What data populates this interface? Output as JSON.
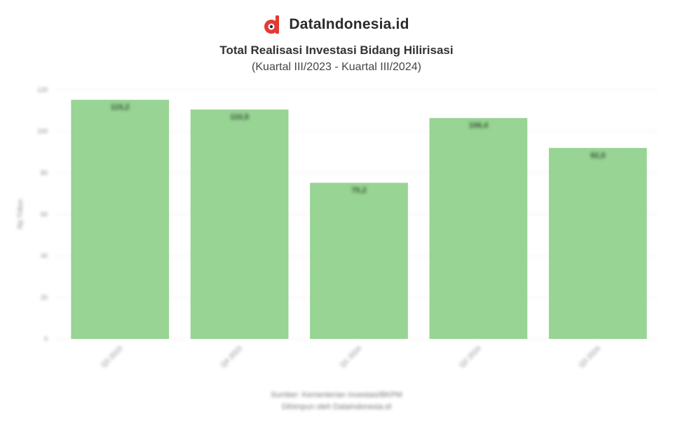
{
  "brand": {
    "name": "DataIndonesia.id",
    "logo_icon": "dataindonesia-logo-icon",
    "logo_color": "#e53935"
  },
  "chart_data": {
    "type": "bar",
    "title": "Total Realisasi Investasi Bidang Hilirisasi",
    "subtitle": "(Kuartal III/2023 - Kuartal III/2024)",
    "categories": [
      "Q3 2023",
      "Q4 2023",
      "Q1 2024",
      "Q2 2024",
      "Q3 2024"
    ],
    "values": [
      115.2,
      110.5,
      75.2,
      106.4,
      92.0
    ],
    "data_labels": [
      "115,2",
      "110,5",
      "75,2",
      "106,4",
      "92,0"
    ],
    "ylabel": "Rp Triliun",
    "ylim": [
      0,
      120
    ],
    "yticks": [
      0,
      20,
      40,
      60,
      80,
      100,
      120
    ],
    "grid": true,
    "bar_color": "#98d494"
  },
  "footer": {
    "source": "Sumber: Kementerian Investasi/BKPM",
    "note": "Dihimpun oleh DataIndonesia.id"
  }
}
